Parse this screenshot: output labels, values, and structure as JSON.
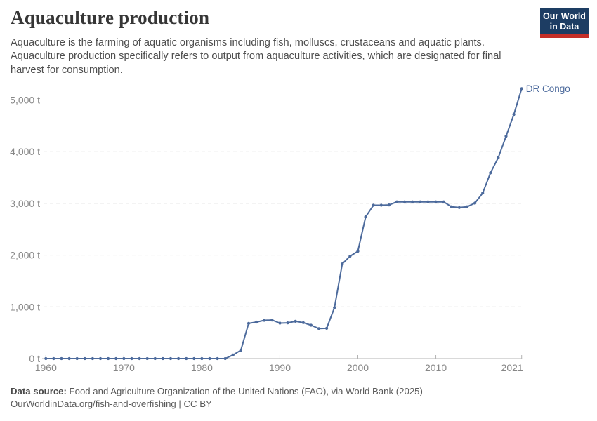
{
  "header": {
    "title": "Aquaculture production",
    "subtitle": "Aquaculture is the farming of aquatic organisms including fish, molluscs, crustaceans and aquatic plants. Aquaculture production specifically refers to output from aquaculture activities, which are designated for final harvest for consumption.",
    "logo": {
      "line1": "Our World",
      "line2": "in Data"
    }
  },
  "chart_data": {
    "type": "line",
    "title": "Aquaculture production",
    "entity": "DR Congo",
    "unit": "t",
    "x": [
      1960,
      1961,
      1962,
      1963,
      1964,
      1965,
      1966,
      1967,
      1968,
      1969,
      1970,
      1971,
      1972,
      1973,
      1974,
      1975,
      1976,
      1977,
      1978,
      1979,
      1980,
      1981,
      1982,
      1983,
      1984,
      1985,
      1986,
      1987,
      1988,
      1989,
      1990,
      1991,
      1992,
      1993,
      1994,
      1995,
      1996,
      1997,
      1998,
      1999,
      2000,
      2001,
      2002,
      2003,
      2004,
      2005,
      2006,
      2007,
      2008,
      2009,
      2010,
      2011,
      2012,
      2013,
      2014,
      2015,
      2016,
      2017,
      2018,
      2019,
      2020,
      2021
    ],
    "values": [
      0,
      0,
      0,
      0,
      0,
      0,
      0,
      0,
      0,
      0,
      0,
      0,
      0,
      0,
      0,
      0,
      0,
      0,
      0,
      0,
      0,
      0,
      0,
      0,
      70,
      160,
      680,
      705,
      740,
      745,
      685,
      690,
      720,
      695,
      645,
      580,
      585,
      985,
      1830,
      1980,
      2075,
      2740,
      2965,
      2965,
      2970,
      3030,
      3030,
      3030,
      3030,
      3030,
      3030,
      3030,
      2935,
      2920,
      2935,
      3005,
      3200,
      3590,
      3885,
      4300,
      4720,
      5220
    ],
    "x_ticks": [
      1960,
      1970,
      1980,
      1990,
      2000,
      2010,
      2021
    ],
    "y_ticks": [
      0,
      1000,
      2000,
      3000,
      4000,
      5000
    ],
    "y_tick_labels": [
      "0 t",
      "1,000 t",
      "2,000 t",
      "3,000 t",
      "4,000 t",
      "5,000 t"
    ],
    "xlim": [
      1959.5,
      2021
    ],
    "ylim": [
      0,
      5400
    ],
    "grid": true,
    "legend_position": "end-of-line-label",
    "line_color": "#4c6a9c"
  },
  "footer": {
    "source_label": "Data source:",
    "source_text": " Food and Agriculture Organization of the United Nations (FAO), via World Bank (2025)",
    "attribution": "OurWorldinData.org/fish-and-overfishing | CC BY"
  },
  "colors": {
    "line": "#4c6a9c",
    "entity_label": "#4c6a9c",
    "gridline": "#e0e0e0",
    "axis_line": "#b3b3b3",
    "tick_label": "#878787",
    "logo_bg": "#1d3d63",
    "logo_stripe": "#c52f28"
  }
}
